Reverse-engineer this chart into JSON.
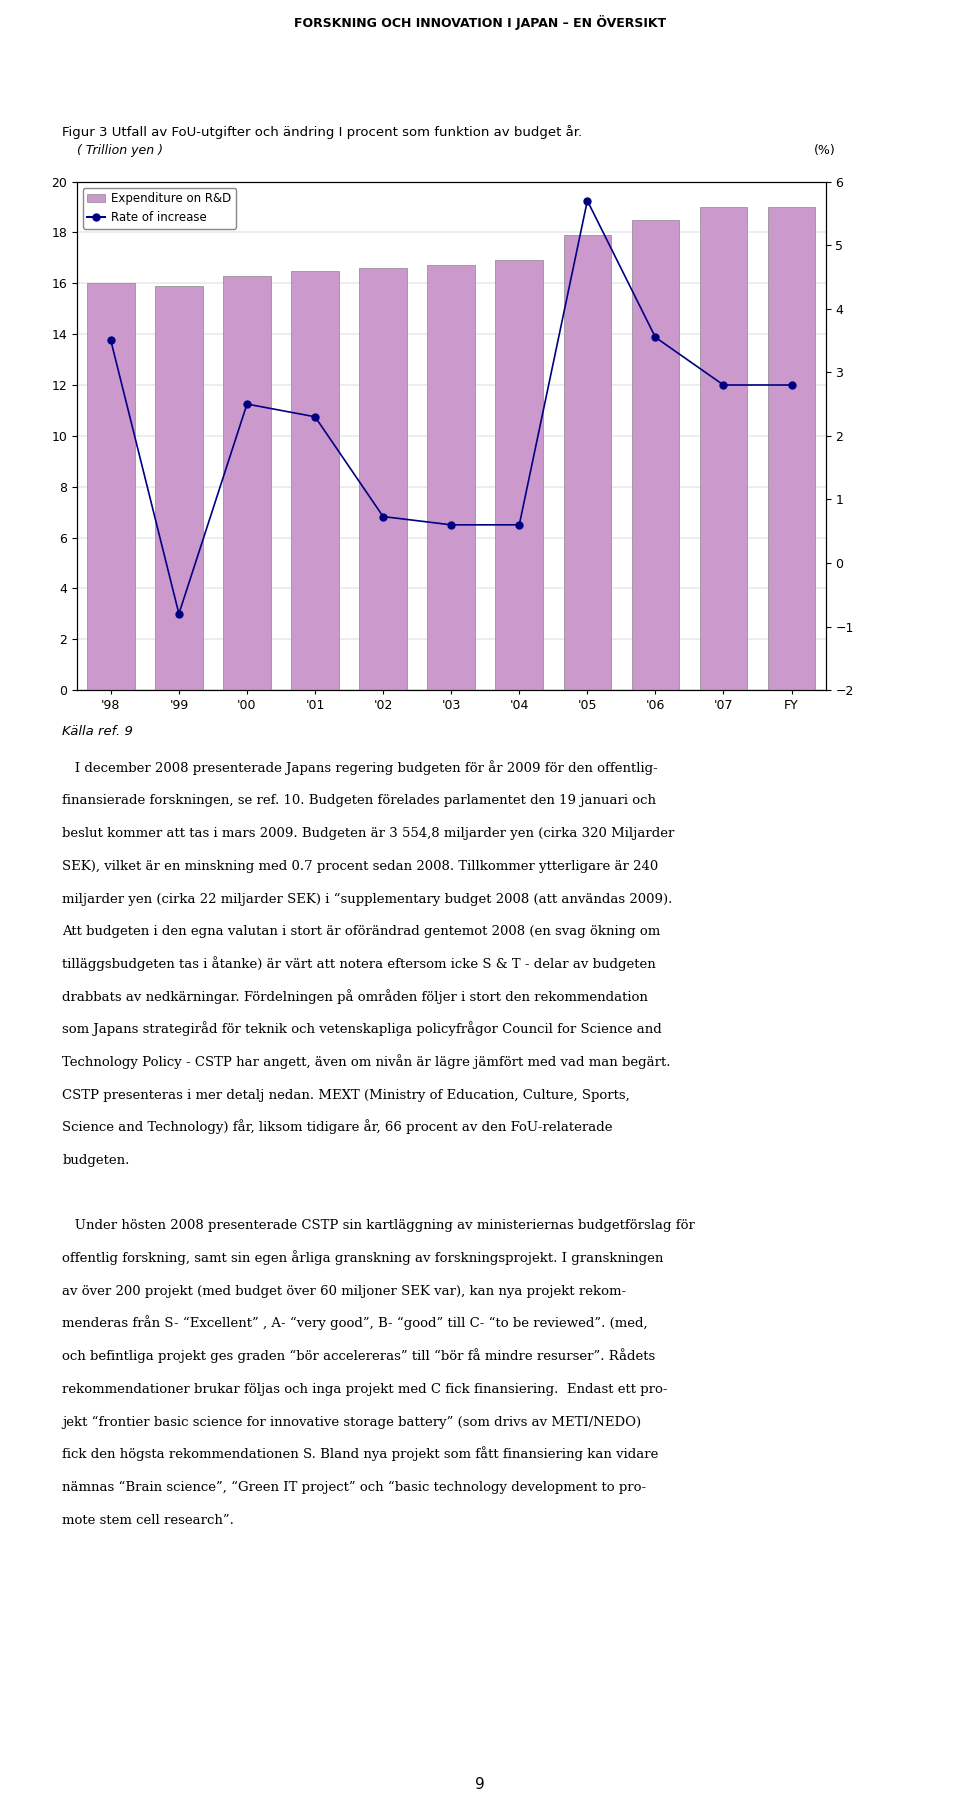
{
  "page_title": "FORSKNING OCH INNOVATION I JAPAN – EN ÖVERSIKT",
  "fig_title": "Figur 3 Utfall av FoU-utgifter och ändring I procent som funktion av budget år.",
  "left_ylabel": "( Trillion yen )",
  "right_ylabel": "(%)",
  "categories": [
    "'98",
    "'99",
    "'00",
    "'01",
    "'02",
    "'03",
    "'04",
    "'05",
    "'06",
    "'07",
    "FY"
  ],
  "bar_values": [
    16.0,
    15.9,
    16.3,
    16.5,
    16.6,
    16.7,
    16.9,
    17.9,
    18.5,
    19.0,
    19.0
  ],
  "rate_values": [
    3.5,
    -0.8,
    2.5,
    2.3,
    0.73,
    0.6,
    0.6,
    5.7,
    3.55,
    2.8,
    2.8
  ],
  "bar_color": "#cc99cc",
  "bar_edgecolor": "#888888",
  "line_color": "#000080",
  "marker_color": "#000080",
  "left_ylim": [
    0,
    20
  ],
  "left_yticks": [
    0,
    2,
    4,
    6,
    8,
    10,
    12,
    14,
    16,
    18,
    20
  ],
  "right_ylim": [
    -2,
    6
  ],
  "right_yticks": [
    -2,
    -1,
    0,
    1,
    2,
    3,
    4,
    5,
    6
  ],
  "legend_bar": "Expenditure on R&D",
  "legend_line": "Rate of increase",
  "body_text": [
    "Källa ref. 9",
    "   I december 2008 presenterade Japans regering budgeten för år 2009 för den offentlig-",
    "finansierade forskningen, se ref. 10. Budgeten förelades parlamentet den 19 januari och",
    "beslut kommer att tas i mars 2009. Budgeten är 3 554,8 miljarder yen (cirka 320 Miljarder",
    "SEK), vilket är en minskning med 0.7 procent sedan 2008. Tillkommer ytterligare är 240",
    "miljarder yen (cirka 22 miljarder SEK) i “supplementary budget 2008 (att användas 2009).",
    "Att budgeten i den egna valutan i stort är oförändrad gentemot 2008 (en svag ökning om",
    "tilläggsbudgeten tas i åtanke) är värt att notera eftersom icke S & T - delar av budgeten",
    "drabbats av nedkärningar. Fördelningen på områden följer i stort den rekommendation",
    "som Japans strategiråd för teknik och vetenskapliga policyfrågor Council for Science and",
    "Technology Policy - CSTP har angett, även om nivån är lägre jämfört med vad man begärt.",
    "CSTP presenteras i mer detalj nedan. MEXT (Ministry of Education, Culture, Sports,",
    "Science and Technology) får, liksom tidigare år, 66 procent av den FoU-relaterade",
    "budgeten.",
    "",
    "   Under hösten 2008 presenterade CSTP sin kartläggning av ministeriernas budgetförslag för",
    "offentlig forskning, samt sin egen årliga granskning av forskningsprojekt. I granskningen",
    "av över 200 projekt (med budget över 60 miljoner SEK var), kan nya projekt rekom-",
    "menderas från S- “Excellent” , A- “very good”, B- “good” till C- “to be reviewed”. (med,",
    "och befintliga projekt ges graden “bör accelereras” till “bör få mindre resurser”. Rådets",
    "rekommendationer brukar följas och inga projekt med C fick finansiering.  Endast ett pro-",
    "jekt “frontier basic science for innovative storage battery” (som drivs av METI/NEDO)",
    "fick den högsta rekommendationen S. Bland nya projekt som fått finansiering kan vidare",
    "nämnas “Brain science”, “Green IT project” och “basic technology development to pro-",
    "mote stem cell research”."
  ],
  "page_number": "9"
}
